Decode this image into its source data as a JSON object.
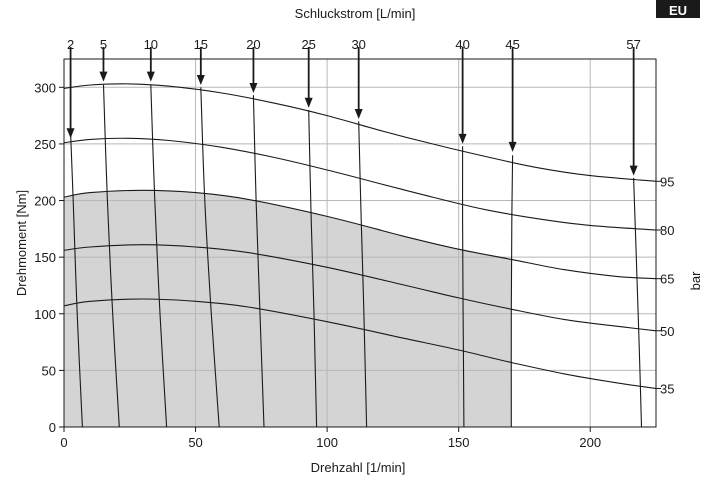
{
  "badge": "EU",
  "chart_data": {
    "type": "line",
    "title": "Schluckstrom [L/min]",
    "xlabel": "Drehzahl [1/min]",
    "ylabel": "Drehmoment [Nm]",
    "right_axis_label": "bar",
    "xlim": [
      0,
      225
    ],
    "ylim": [
      0,
      325
    ],
    "x_ticks": [
      0,
      50,
      100,
      150,
      200
    ],
    "y_ticks": [
      0,
      50,
      100,
      150,
      200,
      250,
      300
    ],
    "grid": true,
    "shaded_region": {
      "points": [
        [
          0,
          0
        ],
        [
          0,
          203
        ],
        [
          10,
          207
        ],
        [
          30,
          209
        ],
        [
          50,
          207
        ],
        [
          70,
          201
        ],
        [
          100,
          186
        ],
        [
          130,
          168
        ],
        [
          150,
          157
        ],
        [
          170,
          148
        ],
        [
          170,
          0
        ]
      ]
    },
    "pressure_series": [
      {
        "name": "95",
        "points": [
          [
            0,
            299
          ],
          [
            10,
            302
          ],
          [
            25,
            303
          ],
          [
            40,
            301
          ],
          [
            60,
            295
          ],
          [
            80,
            286
          ],
          [
            100,
            275
          ],
          [
            120,
            262
          ],
          [
            140,
            250
          ],
          [
            160,
            239
          ],
          [
            180,
            229
          ],
          [
            200,
            222
          ],
          [
            225,
            217
          ]
        ]
      },
      {
        "name": "80",
        "points": [
          [
            0,
            251
          ],
          [
            10,
            254
          ],
          [
            25,
            255
          ],
          [
            40,
            253
          ],
          [
            60,
            247
          ],
          [
            80,
            238
          ],
          [
            100,
            227
          ],
          [
            120,
            215
          ],
          [
            140,
            203
          ],
          [
            160,
            192
          ],
          [
            180,
            184
          ],
          [
            200,
            178
          ],
          [
            225,
            174
          ]
        ]
      },
      {
        "name": "65",
        "points": [
          [
            0,
            203
          ],
          [
            10,
            207
          ],
          [
            30,
            209
          ],
          [
            50,
            207
          ],
          [
            70,
            201
          ],
          [
            100,
            186
          ],
          [
            130,
            168
          ],
          [
            150,
            157
          ],
          [
            170,
            148
          ],
          [
            190,
            139
          ],
          [
            210,
            133
          ],
          [
            225,
            131
          ]
        ]
      },
      {
        "name": "50",
        "points": [
          [
            0,
            156
          ],
          [
            10,
            159
          ],
          [
            30,
            161
          ],
          [
            50,
            159
          ],
          [
            70,
            154
          ],
          [
            100,
            141
          ],
          [
            130,
            125
          ],
          [
            150,
            114
          ],
          [
            170,
            104
          ],
          [
            190,
            95
          ],
          [
            210,
            89
          ],
          [
            225,
            85
          ]
        ]
      },
      {
        "name": "35",
        "points": [
          [
            0,
            107
          ],
          [
            10,
            111
          ],
          [
            30,
            113
          ],
          [
            50,
            111
          ],
          [
            70,
            106
          ],
          [
            100,
            93
          ],
          [
            130,
            78
          ],
          [
            150,
            68
          ],
          [
            170,
            57
          ],
          [
            190,
            47
          ],
          [
            210,
            39
          ],
          [
            225,
            34
          ]
        ]
      }
    ],
    "flow_series": [
      {
        "name": "2",
        "points": [
          [
            2.5,
            260
          ],
          [
            3.5,
            200
          ],
          [
            5,
            100
          ],
          [
            7,
            0
          ]
        ]
      },
      {
        "name": "5",
        "points": [
          [
            15,
            302
          ],
          [
            16.5,
            200
          ],
          [
            18.5,
            100
          ],
          [
            21,
            0
          ]
        ]
      },
      {
        "name": "10",
        "points": [
          [
            33,
            302
          ],
          [
            34.5,
            200
          ],
          [
            36.5,
            100
          ],
          [
            39,
            0
          ]
        ]
      },
      {
        "name": "15",
        "points": [
          [
            52,
            300
          ],
          [
            53.5,
            200
          ],
          [
            56,
            100
          ],
          [
            59,
            0
          ]
        ]
      },
      {
        "name": "20",
        "points": [
          [
            72,
            293
          ],
          [
            73,
            200
          ],
          [
            74.5,
            100
          ],
          [
            76,
            0
          ]
        ]
      },
      {
        "name": "25",
        "points": [
          [
            93,
            280
          ],
          [
            94,
            180
          ],
          [
            95,
            100
          ],
          [
            96,
            0
          ]
        ]
      },
      {
        "name": "30",
        "points": [
          [
            112,
            270
          ],
          [
            113,
            180
          ],
          [
            114,
            100
          ],
          [
            115,
            0
          ]
        ]
      },
      {
        "name": "40",
        "points": [
          [
            151.5,
            248
          ],
          [
            151.5,
            180
          ],
          [
            151.7,
            100
          ],
          [
            152,
            0
          ]
        ]
      },
      {
        "name": "45",
        "points": [
          [
            170.5,
            240
          ],
          [
            170.2,
            180
          ],
          [
            170,
            100
          ],
          [
            170,
            0
          ]
        ]
      },
      {
        "name": "57",
        "points": [
          [
            216.5,
            220
          ],
          [
            217.5,
            150
          ],
          [
            218.5,
            80
          ],
          [
            219.5,
            0
          ]
        ]
      }
    ],
    "arrows": [
      {
        "series": "2",
        "x": 2.5,
        "y_start": 325,
        "y_end": 255
      },
      {
        "series": "5",
        "x": 15,
        "y_start": 325,
        "y_end": 305
      },
      {
        "series": "10",
        "x": 33,
        "y_start": 325,
        "y_end": 305
      },
      {
        "series": "15",
        "x": 52,
        "y_start": 325,
        "y_end": 302
      },
      {
        "series": "20",
        "x": 72,
        "y_start": 325,
        "y_end": 295
      },
      {
        "series": "25",
        "x": 93,
        "y_start": 325,
        "y_end": 282
      },
      {
        "series": "30",
        "x": 112,
        "y_start": 325,
        "y_end": 272
      },
      {
        "series": "40",
        "x": 151.5,
        "y_start": 325,
        "y_end": 250
      },
      {
        "series": "45",
        "x": 170.5,
        "y_start": 325,
        "y_end": 243
      },
      {
        "series": "57",
        "x": 216.5,
        "y_start": 325,
        "y_end": 222
      }
    ],
    "colors": {
      "line": "#1a1a1a",
      "grid": "#b8b8b8",
      "shade": "#d4d4d4"
    }
  }
}
